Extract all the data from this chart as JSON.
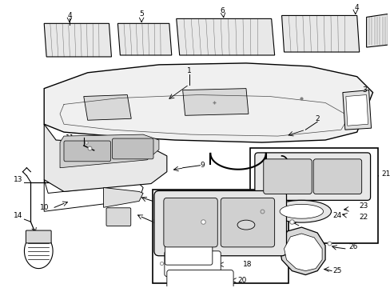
{
  "bg_color": "#ffffff",
  "line_color": "#000000",
  "fs": 6.5,
  "fs_small": 5.5
}
